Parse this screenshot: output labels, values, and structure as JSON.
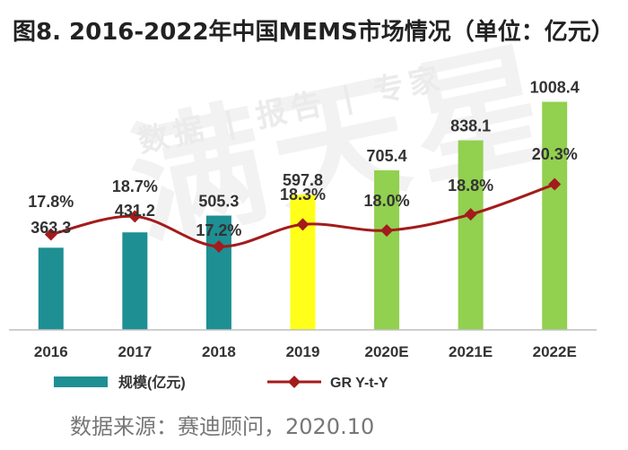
{
  "title": "图8. 2016-2022年中国MEMS市场情况（单位：亿元）",
  "watermark": "满天星",
  "watermark_sub": "数据 | 报告 | 专家",
  "source": "数据来源：赛迪顾问，2020.10",
  "chart_data": {
    "type": "bar",
    "categories": [
      "2016",
      "2017",
      "2018",
      "2019",
      "2020E",
      "2021E",
      "2022E"
    ],
    "series": [
      {
        "name": "规模(亿元)",
        "type": "bar",
        "values": [
          363.3,
          431.2,
          505.3,
          597.8,
          705.4,
          838.1,
          1008.4
        ],
        "value_labels": [
          "363.3",
          "431.2",
          "505.3",
          "597.8",
          "705.4",
          "838.1",
          "1008.4"
        ],
        "colors": [
          "#1e8f93",
          "#1e8f93",
          "#1e8f93",
          "#ffff19",
          "#92d050",
          "#92d050",
          "#92d050"
        ]
      },
      {
        "name": "GR Y-t-Y",
        "type": "line",
        "values": [
          17.8,
          18.7,
          17.2,
          18.3,
          18.0,
          18.8,
          20.3
        ],
        "value_labels": [
          "17.8%",
          "18.7%",
          "17.2%",
          "18.3%",
          "18.0%",
          "18.8%",
          "20.3%"
        ],
        "color": "#a31b1b"
      }
    ],
    "legend": {
      "position": "bottom-left",
      "bar_color": "#1e8f93",
      "line_color": "#a31b1b"
    },
    "grid": false
  }
}
